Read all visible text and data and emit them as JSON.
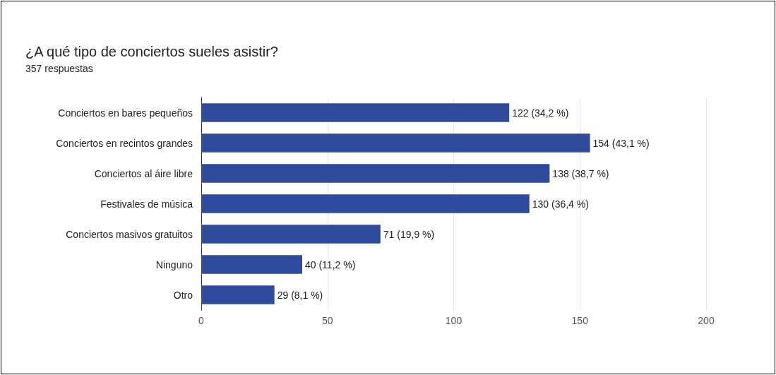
{
  "chart_data": {
    "type": "bar",
    "orientation": "horizontal",
    "title": "¿A qué tipo de conciertos sueles asistir?",
    "subtitle": "357 respuestas",
    "categories": [
      "Conciertos en bares pequeños",
      "Conciertos en recintos grandes",
      "Conciertos al áire libre",
      "Festivales de música",
      "Conciertos masivos gratuitos",
      "Ninguno",
      "Otro"
    ],
    "values": [
      122,
      154,
      138,
      130,
      71,
      40,
      29
    ],
    "value_labels": [
      "122 (34,2 %)",
      "154 (43,1 %)",
      "138 (38,7 %)",
      "130 (36,4 %)",
      "71 (19,9 %)",
      "40 (11,2 %)",
      "29 (8,1 %)"
    ],
    "color": "#2f4b9e",
    "xlim": [
      0,
      200
    ],
    "xticks": [
      0,
      50,
      100,
      150,
      200
    ],
    "grid": "x"
  }
}
